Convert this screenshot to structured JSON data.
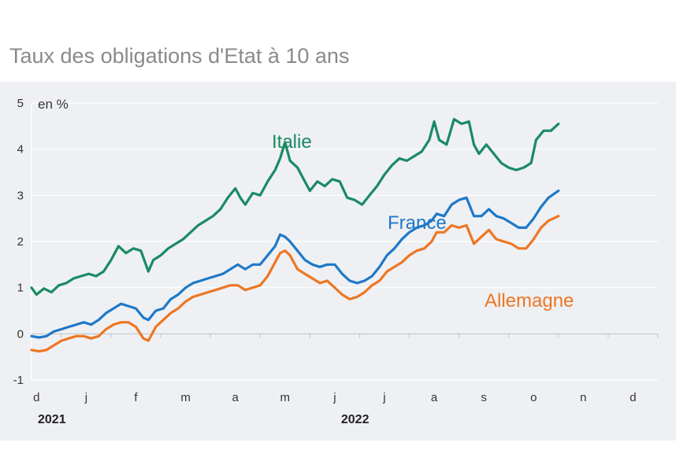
{
  "chart_data": {
    "type": "line",
    "title": "Taux des obligations d'Etat à 10 ans",
    "ylabel": "en %",
    "ylim": [
      -1,
      5
    ],
    "yticks": [
      "5",
      "4",
      "3",
      "2",
      "1",
      "0",
      "-1"
    ],
    "x_month_labels": [
      "d",
      "j",
      "f",
      "m",
      "a",
      "m",
      "j",
      "j",
      "a",
      "s",
      "o",
      "n",
      "d"
    ],
    "x_year_labels": [
      "2021",
      "2022"
    ],
    "colors": {
      "Italie": "#1a8a63",
      "France": "#1f78c8",
      "Allemagne": "#ee7623",
      "background": "#eef0f3",
      "grid": "#ffffff"
    },
    "x": [
      "2021-12",
      "2022-01",
      "2022-02",
      "2022-03",
      "2022-04",
      "2022-05",
      "2022-06",
      "2022-07",
      "2022-08",
      "2022-09",
      "2022-10",
      "2022-11",
      "2022-12"
    ],
    "series": [
      {
        "name": "Italie",
        "values": [
          [
            0,
            1.0
          ],
          [
            0.1,
            0.85
          ],
          [
            0.25,
            0.98
          ],
          [
            0.4,
            0.9
          ],
          [
            0.55,
            1.05
          ],
          [
            0.7,
            1.1
          ],
          [
            0.85,
            1.2
          ],
          [
            1.0,
            1.25
          ],
          [
            1.15,
            1.3
          ],
          [
            1.3,
            1.25
          ],
          [
            1.45,
            1.35
          ],
          [
            1.6,
            1.6
          ],
          [
            1.75,
            1.9
          ],
          [
            1.9,
            1.75
          ],
          [
            2.05,
            1.85
          ],
          [
            2.2,
            1.8
          ],
          [
            2.35,
            1.35
          ],
          [
            2.45,
            1.6
          ],
          [
            2.6,
            1.7
          ],
          [
            2.75,
            1.85
          ],
          [
            2.9,
            1.95
          ],
          [
            3.05,
            2.05
          ],
          [
            3.2,
            2.2
          ],
          [
            3.35,
            2.35
          ],
          [
            3.5,
            2.45
          ],
          [
            3.65,
            2.55
          ],
          [
            3.8,
            2.7
          ],
          [
            3.95,
            2.95
          ],
          [
            4.1,
            3.15
          ],
          [
            4.2,
            2.95
          ],
          [
            4.3,
            2.8
          ],
          [
            4.45,
            3.05
          ],
          [
            4.6,
            3.0
          ],
          [
            4.75,
            3.3
          ],
          [
            4.9,
            3.55
          ],
          [
            5.0,
            3.8
          ],
          [
            5.1,
            4.15
          ],
          [
            5.2,
            3.75
          ],
          [
            5.35,
            3.6
          ],
          [
            5.5,
            3.3
          ],
          [
            5.6,
            3.1
          ],
          [
            5.75,
            3.3
          ],
          [
            5.9,
            3.2
          ],
          [
            6.05,
            3.35
          ],
          [
            6.2,
            3.3
          ],
          [
            6.35,
            2.95
          ],
          [
            6.5,
            2.9
          ],
          [
            6.65,
            2.8
          ],
          [
            6.8,
            3.0
          ],
          [
            6.95,
            3.2
          ],
          [
            7.1,
            3.45
          ],
          [
            7.25,
            3.65
          ],
          [
            7.4,
            3.8
          ],
          [
            7.55,
            3.75
          ],
          [
            7.7,
            3.85
          ],
          [
            7.85,
            3.95
          ],
          [
            8.0,
            4.2
          ],
          [
            8.1,
            4.6
          ],
          [
            8.2,
            4.2
          ],
          [
            8.35,
            4.1
          ],
          [
            8.5,
            4.65
          ],
          [
            8.65,
            4.55
          ],
          [
            8.8,
            4.6
          ],
          [
            8.9,
            4.1
          ],
          [
            9.0,
            3.9
          ],
          [
            9.15,
            4.1
          ],
          [
            9.3,
            3.9
          ],
          [
            9.45,
            3.7
          ],
          [
            9.6,
            3.6
          ],
          [
            9.75,
            3.55
          ],
          [
            9.9,
            3.6
          ],
          [
            10.05,
            3.7
          ],
          [
            10.15,
            4.2
          ],
          [
            10.3,
            4.4
          ],
          [
            10.45,
            4.4
          ],
          [
            10.6,
            4.55
          ]
        ]
      },
      {
        "name": "France",
        "values": [
          [
            0,
            -0.05
          ],
          [
            0.15,
            -0.08
          ],
          [
            0.3,
            -0.05
          ],
          [
            0.45,
            0.05
          ],
          [
            0.6,
            0.1
          ],
          [
            0.75,
            0.15
          ],
          [
            0.9,
            0.2
          ],
          [
            1.05,
            0.25
          ],
          [
            1.2,
            0.2
          ],
          [
            1.35,
            0.3
          ],
          [
            1.5,
            0.45
          ],
          [
            1.65,
            0.55
          ],
          [
            1.8,
            0.65
          ],
          [
            1.95,
            0.6
          ],
          [
            2.1,
            0.55
          ],
          [
            2.25,
            0.35
          ],
          [
            2.35,
            0.3
          ],
          [
            2.5,
            0.5
          ],
          [
            2.65,
            0.55
          ],
          [
            2.8,
            0.75
          ],
          [
            2.95,
            0.85
          ],
          [
            3.1,
            1.0
          ],
          [
            3.25,
            1.1
          ],
          [
            3.4,
            1.15
          ],
          [
            3.55,
            1.2
          ],
          [
            3.7,
            1.25
          ],
          [
            3.85,
            1.3
          ],
          [
            4.0,
            1.4
          ],
          [
            4.15,
            1.5
          ],
          [
            4.3,
            1.4
          ],
          [
            4.45,
            1.5
          ],
          [
            4.6,
            1.5
          ],
          [
            4.75,
            1.7
          ],
          [
            4.9,
            1.9
          ],
          [
            5.0,
            2.15
          ],
          [
            5.1,
            2.1
          ],
          [
            5.2,
            2.0
          ],
          [
            5.35,
            1.8
          ],
          [
            5.5,
            1.6
          ],
          [
            5.65,
            1.5
          ],
          [
            5.8,
            1.45
          ],
          [
            5.95,
            1.5
          ],
          [
            6.1,
            1.5
          ],
          [
            6.25,
            1.3
          ],
          [
            6.4,
            1.15
          ],
          [
            6.55,
            1.1
          ],
          [
            6.7,
            1.15
          ],
          [
            6.85,
            1.25
          ],
          [
            7.0,
            1.45
          ],
          [
            7.15,
            1.7
          ],
          [
            7.3,
            1.85
          ],
          [
            7.45,
            2.05
          ],
          [
            7.6,
            2.2
          ],
          [
            7.75,
            2.3
          ],
          [
            7.9,
            2.35
          ],
          [
            8.05,
            2.45
          ],
          [
            8.15,
            2.6
          ],
          [
            8.3,
            2.55
          ],
          [
            8.45,
            2.8
          ],
          [
            8.6,
            2.9
          ],
          [
            8.75,
            2.95
          ],
          [
            8.9,
            2.55
          ],
          [
            9.05,
            2.55
          ],
          [
            9.2,
            2.7
          ],
          [
            9.35,
            2.55
          ],
          [
            9.5,
            2.5
          ],
          [
            9.65,
            2.4
          ],
          [
            9.8,
            2.3
          ],
          [
            9.95,
            2.3
          ],
          [
            10.1,
            2.5
          ],
          [
            10.25,
            2.75
          ],
          [
            10.4,
            2.95
          ],
          [
            10.6,
            3.1
          ]
        ]
      },
      {
        "name": "Allemagne",
        "values": [
          [
            0,
            -0.35
          ],
          [
            0.15,
            -0.38
          ],
          [
            0.3,
            -0.35
          ],
          [
            0.45,
            -0.25
          ],
          [
            0.6,
            -0.15
          ],
          [
            0.75,
            -0.1
          ],
          [
            0.9,
            -0.05
          ],
          [
            1.05,
            -0.05
          ],
          [
            1.2,
            -0.1
          ],
          [
            1.35,
            -0.05
          ],
          [
            1.5,
            0.1
          ],
          [
            1.65,
            0.2
          ],
          [
            1.8,
            0.25
          ],
          [
            1.95,
            0.25
          ],
          [
            2.1,
            0.15
          ],
          [
            2.25,
            -0.1
          ],
          [
            2.35,
            -0.15
          ],
          [
            2.5,
            0.15
          ],
          [
            2.65,
            0.3
          ],
          [
            2.8,
            0.45
          ],
          [
            2.95,
            0.55
          ],
          [
            3.1,
            0.7
          ],
          [
            3.25,
            0.8
          ],
          [
            3.4,
            0.85
          ],
          [
            3.55,
            0.9
          ],
          [
            3.7,
            0.95
          ],
          [
            3.85,
            1.0
          ],
          [
            4.0,
            1.05
          ],
          [
            4.15,
            1.05
          ],
          [
            4.3,
            0.95
          ],
          [
            4.45,
            1.0
          ],
          [
            4.6,
            1.05
          ],
          [
            4.75,
            1.25
          ],
          [
            4.9,
            1.55
          ],
          [
            5.0,
            1.75
          ],
          [
            5.1,
            1.8
          ],
          [
            5.2,
            1.7
          ],
          [
            5.35,
            1.4
          ],
          [
            5.5,
            1.3
          ],
          [
            5.65,
            1.2
          ],
          [
            5.8,
            1.1
          ],
          [
            5.95,
            1.15
          ],
          [
            6.1,
            1.0
          ],
          [
            6.25,
            0.85
          ],
          [
            6.4,
            0.75
          ],
          [
            6.55,
            0.8
          ],
          [
            6.7,
            0.9
          ],
          [
            6.85,
            1.05
          ],
          [
            7.0,
            1.15
          ],
          [
            7.15,
            1.35
          ],
          [
            7.3,
            1.45
          ],
          [
            7.45,
            1.55
          ],
          [
            7.6,
            1.7
          ],
          [
            7.75,
            1.8
          ],
          [
            7.9,
            1.85
          ],
          [
            8.05,
            2.0
          ],
          [
            8.15,
            2.2
          ],
          [
            8.3,
            2.2
          ],
          [
            8.45,
            2.35
          ],
          [
            8.6,
            2.3
          ],
          [
            8.75,
            2.35
          ],
          [
            8.9,
            1.95
          ],
          [
            9.05,
            2.1
          ],
          [
            9.2,
            2.25
          ],
          [
            9.35,
            2.05
          ],
          [
            9.5,
            2.0
          ],
          [
            9.65,
            1.95
          ],
          [
            9.8,
            1.85
          ],
          [
            9.95,
            1.85
          ],
          [
            10.1,
            2.05
          ],
          [
            10.25,
            2.3
          ],
          [
            10.4,
            2.45
          ],
          [
            10.6,
            2.55
          ]
        ]
      }
    ],
    "series_labels": [
      "Italie",
      "France",
      "Allemagne"
    ]
  }
}
